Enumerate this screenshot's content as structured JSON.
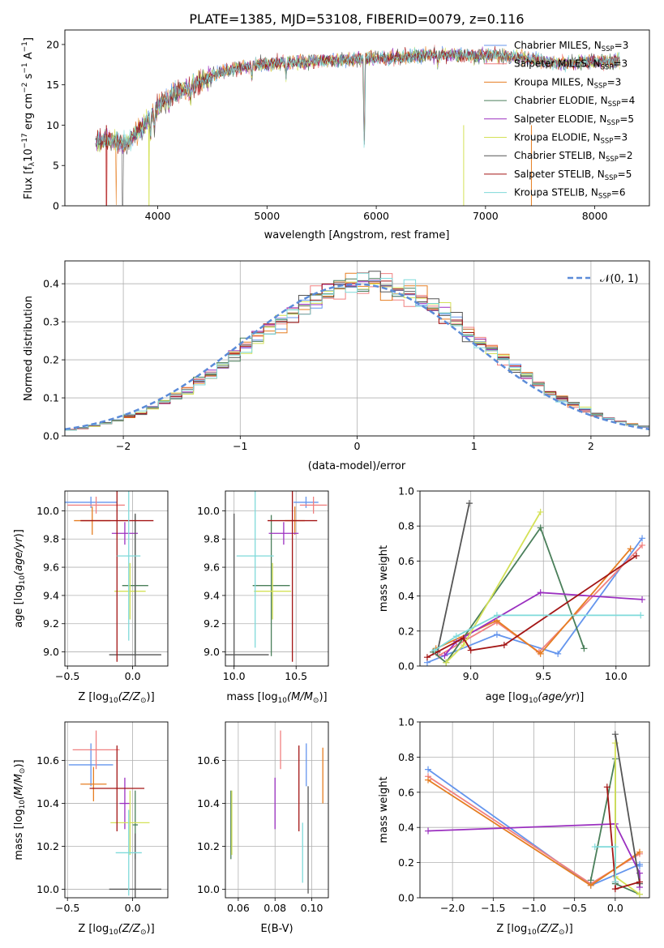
{
  "figure": {
    "title": "PLATE=1385, MJD=53108, FIBERID=0079, z=0.116"
  },
  "chart_data": [
    {
      "id": "spectrum",
      "type": "line",
      "title": "PLATE=1385, MJD=53108, FIBERID=0079, z=0.116",
      "xlabel": "wavelength [Angstrom, rest frame]",
      "ylabel": "Flux [f",
      "xlim": [
        3150,
        8500
      ],
      "ylim": [
        0,
        21.8
      ],
      "xticks": [
        4000,
        5000,
        6000,
        7000,
        8000
      ],
      "yticks": [
        0,
        5,
        10,
        15,
        20
      ],
      "grid": false,
      "legend": "right",
      "series": [
        {
          "name": "Chabrier MILES, N",
          "nssp": "=3",
          "color": "#6495ed"
        },
        {
          "name": "Salpeter MILES, N",
          "nssp": "=3",
          "color": "#f08080"
        },
        {
          "name": "Kroupa MILES, N",
          "nssp": "=3",
          "color": "#e67e22"
        },
        {
          "name": "Chabrier ELODIE, N",
          "nssp": "=4",
          "color": "#4a7f5a"
        },
        {
          "name": "Salpeter ELODIE, N",
          "nssp": "=5",
          "color": "#9b30c0"
        },
        {
          "name": "Kroupa ELODIE, N",
          "nssp": "=3",
          "color": "#d4e157"
        },
        {
          "name": "Chabrier STELIB, N",
          "nssp": "=2",
          "color": "#555555"
        },
        {
          "name": "Salpeter STELIB, N",
          "nssp": "=5",
          "color": "#a31515"
        },
        {
          "name": "Kroupa STELIB, N",
          "nssp": "=6",
          "color": "#7fdada"
        }
      ],
      "continuum": {
        "x": [
          3450,
          3600,
          3700,
          3800,
          3900,
          4000,
          4100,
          4200,
          4300,
          4400,
          4500,
          4700,
          4900,
          5100,
          5300,
          5500,
          5700,
          5900,
          6100,
          6300,
          6500,
          6700,
          6900,
          7100,
          7300,
          7500,
          7700,
          7900,
          8100,
          8250
        ],
        "y": [
          8.0,
          8.2,
          7.5,
          9.0,
          10.5,
          12.3,
          13.5,
          14.2,
          14.6,
          15.5,
          16.2,
          17.0,
          17.5,
          17.7,
          17.8,
          18.0,
          18.0,
          18.3,
          18.3,
          18.5,
          18.7,
          18.8,
          18.6,
          18.7,
          18.3,
          18.0,
          17.6,
          17.8,
          17.9,
          18.1
        ]
      }
    },
    {
      "id": "residuals",
      "type": "line",
      "xlabel": "(data-model)/error",
      "ylabel": "Normed distribution",
      "xlim": [
        -2.5,
        2.5
      ],
      "ylim": [
        0,
        0.46
      ],
      "xticks": [
        -2,
        -1,
        0,
        1,
        2
      ],
      "yticks": [
        0.0,
        0.1,
        0.2,
        0.3,
        0.4
      ],
      "grid": true,
      "legend": "top-right",
      "gaussian_label": "𝒩(0, 1)"
    },
    {
      "id": "age-vs-Z",
      "type": "scatter",
      "xlabel": "Z [log",
      "ylabel": "age  [log",
      "xlim": [
        -0.52,
        0.27
      ],
      "ylim": [
        8.9,
        10.14
      ],
      "xticks": [
        -0.5,
        0.0
      ],
      "yticks": [
        9.0,
        9.2,
        9.4,
        9.6,
        9.8,
        10.0
      ],
      "grid": true,
      "points": [
        {
          "x": -0.32,
          "y": 10.06,
          "xerr": 0.2,
          "yerr": 0.04,
          "color": "#6495ed"
        },
        {
          "x": -0.28,
          "y": 10.04,
          "xerr": 0.22,
          "yerr": 0.06,
          "color": "#f08080"
        },
        {
          "x": -0.31,
          "y": 9.93,
          "xerr": 0.14,
          "yerr": 0.1,
          "color": "#e67e22"
        },
        {
          "x": 0.02,
          "y": 9.47,
          "xerr": 0.1,
          "yerr": 0.5,
          "color": "#4a7f5a"
        },
        {
          "x": -0.06,
          "y": 9.84,
          "xerr": 0.1,
          "yerr": 0.08,
          "color": "#9b30c0"
        },
        {
          "x": -0.02,
          "y": 9.43,
          "xerr": 0.12,
          "yerr": 0.2,
          "color": "#d4e157"
        },
        {
          "x": 0.02,
          "y": 8.98,
          "xerr": 0.2,
          "yerr": 1.0,
          "color": "#555555"
        },
        {
          "x": -0.12,
          "y": 9.93,
          "xerr": 0.28,
          "yerr": 1.0,
          "color": "#a31515"
        },
        {
          "x": -0.03,
          "y": 9.68,
          "xerr": 0.09,
          "yerr": 0.6,
          "color": "#7fdada"
        }
      ]
    },
    {
      "id": "age-vs-mass",
      "type": "scatter",
      "xlabel": "mass [log",
      "ylabel": "",
      "xlim": [
        9.93,
        10.76
      ],
      "ylim": [
        8.9,
        10.14
      ],
      "xticks": [
        10.0,
        10.5
      ],
      "yticks": [
        9.0,
        9.2,
        9.4,
        9.6,
        9.8,
        10.0
      ],
      "grid": true,
      "points": [
        {
          "x": 10.58,
          "y": 10.06,
          "xerr": 0.1,
          "yerr": 0.04,
          "color": "#6495ed"
        },
        {
          "x": 10.64,
          "y": 10.04,
          "xerr": 0.11,
          "yerr": 0.06,
          "color": "#f08080"
        },
        {
          "x": 10.49,
          "y": 9.93,
          "xerr": 0.08,
          "yerr": 0.1,
          "color": "#e67e22"
        },
        {
          "x": 10.3,
          "y": 9.47,
          "xerr": 0.15,
          "yerr": 0.5,
          "color": "#4a7f5a"
        },
        {
          "x": 10.4,
          "y": 9.84,
          "xerr": 0.12,
          "yerr": 0.08,
          "color": "#9b30c0"
        },
        {
          "x": 10.31,
          "y": 9.43,
          "xerr": 0.15,
          "yerr": 0.2,
          "color": "#d4e157"
        },
        {
          "x": 10.0,
          "y": 8.98,
          "xerr": 0.28,
          "yerr": 1.0,
          "color": "#555555"
        },
        {
          "x": 10.47,
          "y": 9.93,
          "xerr": 0.2,
          "yerr": 1.0,
          "color": "#a31515"
        },
        {
          "x": 10.17,
          "y": 9.68,
          "xerr": 0.15,
          "yerr": 0.65,
          "color": "#7fdada"
        }
      ]
    },
    {
      "id": "weight-vs-age",
      "type": "line",
      "xlabel": "age  [log",
      "ylabel": "mass weight",
      "xlim": [
        8.65,
        10.23
      ],
      "ylim": [
        0,
        1.0
      ],
      "xticks": [
        9.0,
        9.5,
        10.0
      ],
      "yticks": [
        0.0,
        0.2,
        0.4,
        0.6,
        0.8,
        1.0
      ],
      "grid": true,
      "series": [
        {
          "color": "#6495ed",
          "x": [
            8.7,
            9.18,
            9.6,
            10.18
          ],
          "y": [
            0.02,
            0.18,
            0.07,
            0.73
          ]
        },
        {
          "color": "#f08080",
          "x": [
            8.78,
            9.18,
            9.47,
            10.18
          ],
          "y": [
            0.06,
            0.25,
            0.08,
            0.69
          ]
        },
        {
          "color": "#e67e22",
          "x": [
            8.76,
            9.18,
            9.48,
            10.1
          ],
          "y": [
            0.1,
            0.26,
            0.07,
            0.67
          ]
        },
        {
          "color": "#4a7f5a",
          "x": [
            8.74,
            8.83,
            9.48,
            9.78
          ],
          "y": [
            0.08,
            0.02,
            0.79,
            0.1
          ]
        },
        {
          "color": "#9b30c0",
          "x": [
            8.82,
            8.9,
            9.48,
            10.18
          ],
          "y": [
            0.06,
            0.14,
            0.42,
            0.38
          ]
        },
        {
          "color": "#d4e157",
          "x": [
            8.83,
            8.95,
            9.48
          ],
          "y": [
            0.02,
            0.12,
            0.88
          ]
        },
        {
          "color": "#555555",
          "x": [
            8.77,
            8.99
          ],
          "y": [
            0.08,
            0.93
          ]
        },
        {
          "color": "#a31515",
          "x": [
            8.7,
            8.95,
            9.0,
            9.23,
            10.14
          ],
          "y": [
            0.05,
            0.16,
            0.09,
            0.12,
            0.63
          ]
        },
        {
          "color": "#7fdada",
          "x": [
            8.75,
            8.9,
            9.18,
            10.17
          ],
          "y": [
            0.09,
            0.17,
            0.29,
            0.29
          ]
        }
      ]
    },
    {
      "id": "mass-vs-Z",
      "type": "scatter",
      "xlabel": "Z [log",
      "ylabel": "mass [log",
      "xlim": [
        -0.52,
        0.27
      ],
      "ylim": [
        9.96,
        10.78
      ],
      "xticks": [
        -0.5,
        0.0
      ],
      "yticks": [
        10.0,
        10.2,
        10.4,
        10.6
      ],
      "grid": true,
      "points": [
        {
          "x": -0.32,
          "y": 10.58,
          "xerr": 0.17,
          "yerr": 0.1,
          "color": "#6495ed"
        },
        {
          "x": -0.28,
          "y": 10.65,
          "xerr": 0.18,
          "yerr": 0.09,
          "color": "#f08080"
        },
        {
          "x": -0.3,
          "y": 10.49,
          "xerr": 0.1,
          "yerr": 0.08,
          "color": "#e67e22"
        },
        {
          "x": 0.02,
          "y": 10.3,
          "xerr": 0.02,
          "yerr": 0.16,
          "color": "#4a7f5a"
        },
        {
          "x": -0.06,
          "y": 10.4,
          "xerr": 0.04,
          "yerr": 0.12,
          "color": "#9b30c0"
        },
        {
          "x": -0.02,
          "y": 10.31,
          "xerr": 0.15,
          "yerr": 0.15,
          "color": "#d4e157"
        },
        {
          "x": 0.02,
          "y": 10.0,
          "xerr": 0.2,
          "yerr": 0.26,
          "color": "#555555"
        },
        {
          "x": -0.12,
          "y": 10.47,
          "xerr": 0.21,
          "yerr": 0.2,
          "color": "#a31515"
        },
        {
          "x": -0.03,
          "y": 10.17,
          "xerr": 0.1,
          "yerr": 0.2,
          "color": "#7fdada"
        }
      ]
    },
    {
      "id": "mass-vs-EBV",
      "type": "scatter",
      "xlabel": "E(B-V)",
      "ylabel": "",
      "xlim": [
        0.053,
        0.109
      ],
      "ylim": [
        9.96,
        10.78
      ],
      "xticks": [
        0.06,
        0.08,
        0.1
      ],
      "yticks": [
        10.0,
        10.2,
        10.4,
        10.6
      ],
      "grid": true,
      "points": [
        {
          "x": 0.097,
          "y": 10.58,
          "xerr": 0.0,
          "yerr": 0.1,
          "color": "#6495ed"
        },
        {
          "x": 0.083,
          "y": 10.65,
          "xerr": 0.0,
          "yerr": 0.09,
          "color": "#f08080"
        },
        {
          "x": 0.106,
          "y": 10.53,
          "xerr": 0.0,
          "yerr": 0.13,
          "color": "#e67e22"
        },
        {
          "x": 0.056,
          "y": 10.3,
          "xerr": 0.0,
          "yerr": 0.16,
          "color": "#4a7f5a"
        },
        {
          "x": 0.08,
          "y": 10.4,
          "xerr": 0.0,
          "yerr": 0.12,
          "color": "#9b30c0"
        },
        {
          "x": 0.0565,
          "y": 10.31,
          "xerr": 0.0,
          "yerr": 0.15,
          "color": "#d4e157"
        },
        {
          "x": 0.098,
          "y": 10.23,
          "xerr": 0.0,
          "yerr": 0.25,
          "color": "#555555"
        },
        {
          "x": 0.093,
          "y": 10.47,
          "xerr": 0.0,
          "yerr": 0.2,
          "color": "#a31515"
        },
        {
          "x": 0.095,
          "y": 10.17,
          "xerr": 0.0,
          "yerr": 0.14,
          "color": "#7fdada"
        }
      ]
    },
    {
      "id": "weight-vs-Z",
      "type": "line",
      "xlabel": "Z [log",
      "ylabel": "mass weight",
      "xlim": [
        -2.4,
        0.42
      ],
      "ylim": [
        0,
        1.0
      ],
      "xticks": [
        -2.0,
        -1.5,
        -1.0,
        -0.5,
        0.0
      ],
      "yticks": [
        0.0,
        0.2,
        0.4,
        0.6,
        0.8,
        1.0
      ],
      "grid": true,
      "series": [
        {
          "color": "#6495ed",
          "x": [
            -2.3,
            -0.3,
            0.3,
            0.3
          ],
          "y": [
            0.73,
            0.07,
            0.19,
            0.18
          ]
        },
        {
          "color": "#f08080",
          "x": [
            -2.3,
            -0.3,
            0.3
          ],
          "y": [
            0.69,
            0.08,
            0.25
          ]
        },
        {
          "color": "#e67e22",
          "x": [
            -2.3,
            -0.3,
            0.3
          ],
          "y": [
            0.67,
            0.07,
            0.26
          ]
        },
        {
          "color": "#4a7f5a",
          "x": [
            -0.3,
            0.0,
            0.0,
            0.3
          ],
          "y": [
            0.1,
            0.79,
            0.08,
            0.02
          ]
        },
        {
          "color": "#9b30c0",
          "x": [
            -2.3,
            0.0,
            0.3,
            0.3
          ],
          "y": [
            0.38,
            0.42,
            0.14,
            0.06
          ]
        },
        {
          "color": "#d4e157",
          "x": [
            0.0,
            0.0,
            0.3
          ],
          "y": [
            0.88,
            0.12,
            0.02
          ]
        },
        {
          "color": "#555555",
          "x": [
            0.0,
            0.3
          ],
          "y": [
            0.93,
            0.08
          ]
        },
        {
          "color": "#a31515",
          "x": [
            -0.1,
            0.0,
            0.0,
            0.3
          ],
          "y": [
            0.63,
            0.09,
            0.05,
            0.09
          ]
        },
        {
          "color": "#7fdada",
          "x": [
            -0.25,
            0.0,
            0.0
          ],
          "y": [
            0.29,
            0.29,
            0.09
          ]
        }
      ]
    }
  ]
}
